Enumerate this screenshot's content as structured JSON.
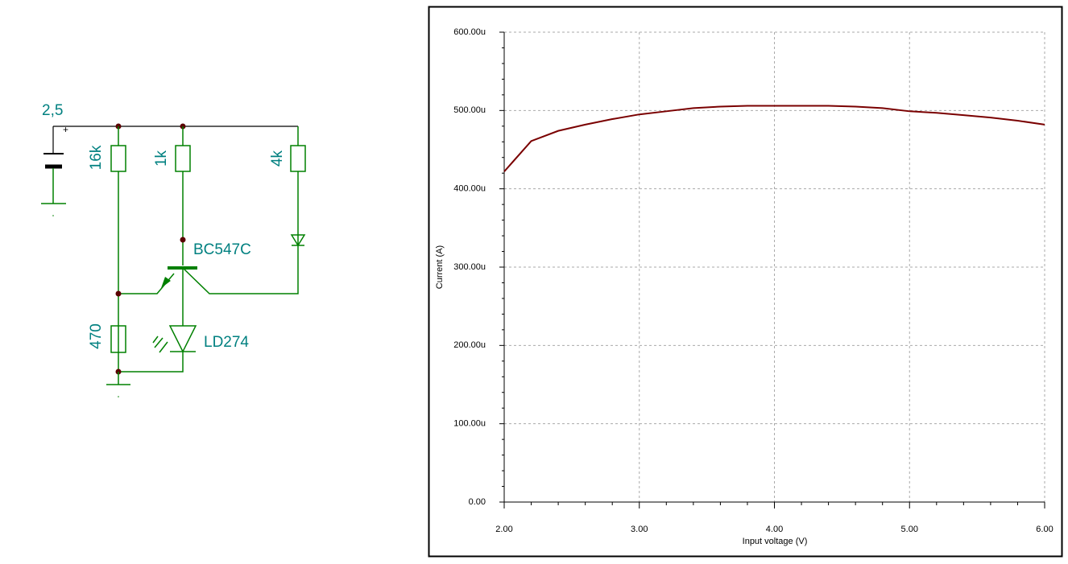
{
  "chart_data": {
    "type": "line",
    "x_label": "Input voltage (V)",
    "y_label": "Current (A)",
    "x": [
      2.0,
      2.2,
      2.4,
      2.6,
      2.8,
      3.0,
      3.2,
      3.4,
      3.6,
      3.8,
      4.0,
      4.2,
      4.4,
      4.6,
      4.8,
      5.0,
      5.2,
      5.4,
      5.6,
      5.8,
      6.0
    ],
    "series": [
      {
        "color": "#7a0000",
        "values": [
          0.000422,
          0.000461,
          0.000474,
          0.000482,
          0.000489,
          0.000495,
          0.000499,
          0.000503,
          0.000505,
          0.000506,
          0.000506,
          0.000506,
          0.000506,
          0.000505,
          0.000503,
          0.000499,
          0.000497,
          0.000494,
          0.000491,
          0.000487,
          0.000482
        ]
      }
    ],
    "xlim": [
      2,
      6
    ],
    "ylim": [
      0,
      0.0006
    ],
    "xticks": [
      {
        "value": 2,
        "label": "2.00"
      },
      {
        "value": 3,
        "label": "3.00"
      },
      {
        "value": 4,
        "label": "4.00"
      },
      {
        "value": 5,
        "label": "5.00"
      },
      {
        "value": 6,
        "label": "6.00"
      }
    ],
    "yticks": [
      {
        "value": 0,
        "label": "0.00"
      },
      {
        "value": 0.0001,
        "label": "100.00u"
      },
      {
        "value": 0.0002,
        "label": "200.00u"
      },
      {
        "value": 0.0003,
        "label": "300.00u"
      },
      {
        "value": 0.0004,
        "label": "400.00u"
      },
      {
        "value": 0.0005,
        "label": "500.00u"
      },
      {
        "value": 0.0006,
        "label": "600.00u"
      }
    ],
    "xminorticks": [
      2.2,
      2.4,
      2.6,
      2.8,
      3.2,
      3.4,
      3.6,
      3.8,
      4.2,
      4.4,
      4.6,
      4.8,
      5.2,
      5.4,
      5.6,
      5.8
    ],
    "yminorticks": [
      2e-05,
      4e-05,
      6e-05,
      8e-05,
      0.00012,
      0.00014,
      0.00016,
      0.00018,
      0.00022,
      0.00024,
      0.00026,
      0.00028,
      0.00032,
      0.00034,
      0.00036,
      0.00038,
      0.00042,
      0.00044,
      0.00046,
      0.00048,
      0.00052,
      0.00054,
      0.00056,
      0.00058
    ],
    "grid": true
  },
  "diagram": {
    "labels": [
      "2,5",
      "+",
      "16k",
      "1k",
      "4k",
      "BC547C",
      "470",
      "LD274"
    ]
  }
}
